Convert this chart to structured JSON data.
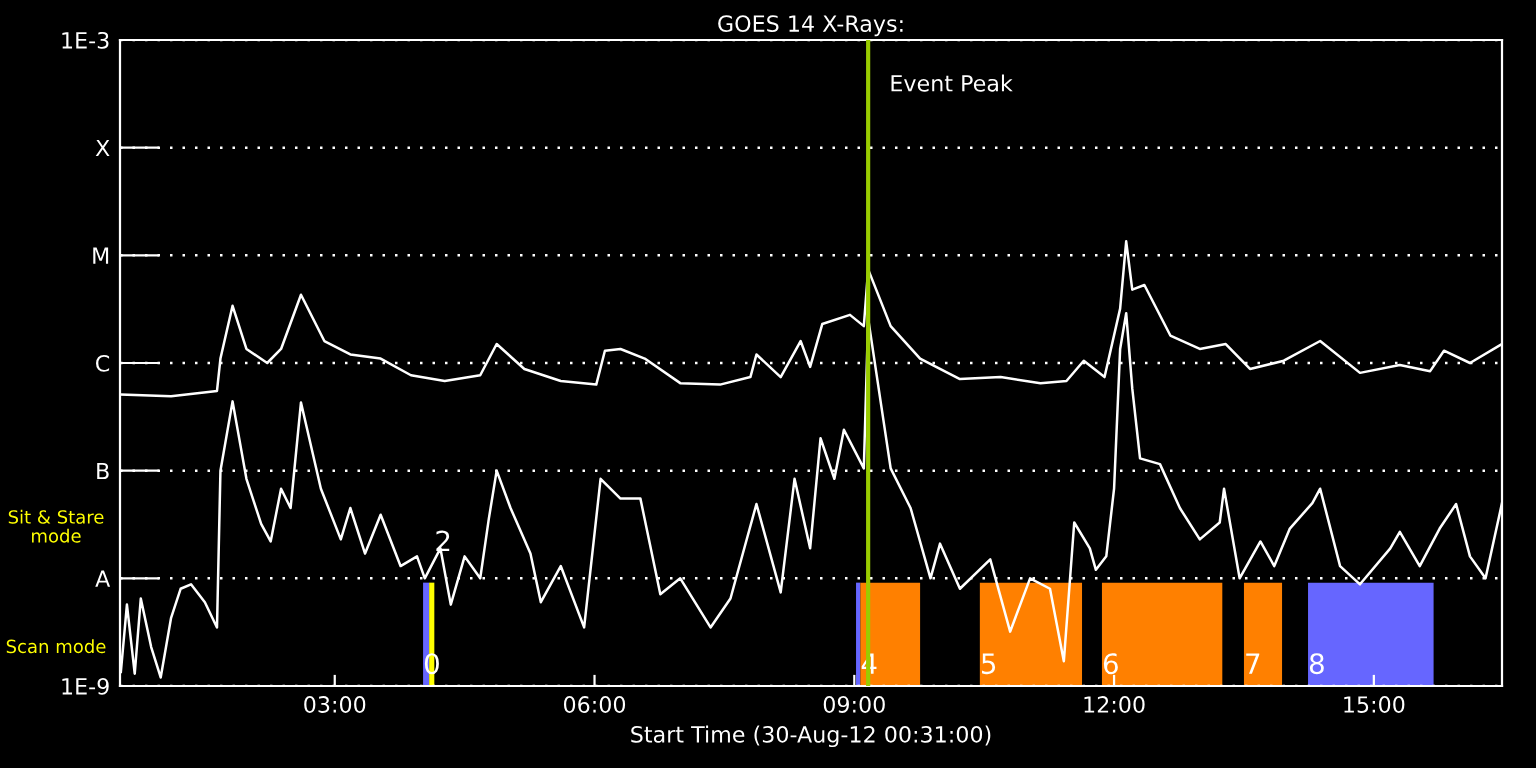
{
  "chart_data": {
    "type": "line",
    "title": "GOES 14 X-Rays:",
    "xlabel": "Start Time (30-Aug-12 00:31:00)",
    "log": "y",
    "grid": "y",
    "line_style": "solid",
    "marker": "none",
    "xlim": [
      0.52,
      16.48
    ],
    "ylim": [
      1e-09,
      0.001
    ],
    "xticks": [
      {
        "value": 3,
        "label": "03:00"
      },
      {
        "value": 6,
        "label": "06:00"
      },
      {
        "value": 9,
        "label": "09:00"
      },
      {
        "value": 12,
        "label": "12:00"
      },
      {
        "value": 15,
        "label": "15:00"
      }
    ],
    "yticks": [
      {
        "value": 1e-09,
        "label": "1E-9"
      },
      {
        "value": 1e-08,
        "label": "A"
      },
      {
        "value": 1e-07,
        "label": "B"
      },
      {
        "value": 1e-06,
        "label": "C"
      },
      {
        "value": 1e-05,
        "label": "M"
      },
      {
        "value": 0.0001,
        "label": "X"
      },
      {
        "value": 0.001,
        "label": "1E-3"
      }
    ],
    "series": [
      {
        "color": "#ffffff",
        "x": [
          0.53,
          1.11,
          1.64,
          1.68,
          1.82,
          1.98,
          2.22,
          2.38,
          2.61,
          2.88,
          3.18,
          3.53,
          3.88,
          4.27,
          4.68,
          4.87,
          5.19,
          5.61,
          6.02,
          6.12,
          6.3,
          6.58,
          6.99,
          7.45,
          7.8,
          7.87,
          8.15,
          8.38,
          8.49,
          8.63,
          8.95,
          9.11,
          9.16,
          9.42,
          9.76,
          10.22,
          10.69,
          11.15,
          11.45,
          11.65,
          11.89,
          12.07,
          12.14,
          12.21,
          12.35,
          12.65,
          12.99,
          13.29,
          13.57,
          13.96,
          14.38,
          14.84,
          15.3,
          15.65,
          15.81,
          16.11,
          16.48
        ],
        "values": [
          5.1e-07,
          4.9e-07,
          5.5e-07,
          1.1e-06,
          3.4e-06,
          1.35e-06,
          1e-06,
          1.35e-06,
          4.3e-06,
          1.6e-06,
          1.2e-06,
          1.1e-06,
          7.7e-07,
          6.8e-07,
          7.7e-07,
          1.5e-06,
          8.8e-07,
          6.8e-07,
          6.3e-07,
          1.3e-06,
          1.35e-06,
          1.1e-06,
          6.5e-07,
          6.3e-07,
          7.4e-07,
          1.2e-06,
          7.4e-07,
          1.6e-06,
          9.2e-07,
          2.3e-06,
          2.8e-06,
          2.2e-06,
          7.4e-06,
          2.2e-06,
          1.1e-06,
          7.1e-07,
          7.4e-07,
          6.5e-07,
          6.8e-07,
          1.05e-06,
          7.4e-07,
          3.2e-06,
          1.35e-05,
          4.8e-06,
          5.3e-06,
          1.8e-06,
          1.35e-06,
          1.5e-06,
          8.8e-07,
          1.05e-06,
          1.6e-06,
          8.1e-07,
          9.6e-07,
          8.4e-07,
          1.3e-06,
          1e-06,
          1.5e-06
        ]
      },
      {
        "color": "#ffffff",
        "x": [
          0.53,
          0.6,
          0.69,
          0.76,
          0.88,
          0.99,
          1.11,
          1.22,
          1.34,
          1.5,
          1.64,
          1.68,
          1.82,
          1.98,
          2.15,
          2.26,
          2.38,
          2.49,
          2.61,
          2.84,
          3.07,
          3.18,
          3.35,
          3.53,
          3.76,
          3.95,
          4.04,
          4.22,
          4.34,
          4.5,
          4.68,
          4.78,
          4.87,
          5.03,
          5.26,
          5.38,
          5.61,
          5.88,
          6.07,
          6.3,
          6.53,
          6.76,
          6.99,
          7.34,
          7.57,
          7.87,
          8.15,
          8.31,
          8.49,
          8.61,
          8.77,
          8.88,
          9.11,
          9.16,
          9.42,
          9.65,
          9.88,
          9.99,
          10.22,
          10.57,
          10.8,
          11.03,
          11.26,
          11.42,
          11.54,
          11.72,
          11.79,
          11.91,
          12.0,
          12.07,
          12.14,
          12.21,
          12.3,
          12.53,
          12.76,
          12.99,
          13.22,
          13.27,
          13.45,
          13.69,
          13.85,
          14.03,
          14.29,
          14.38,
          14.61,
          14.84,
          15.19,
          15.3,
          15.53,
          15.76,
          15.95,
          16.11,
          16.29,
          16.48
        ],
        "values": [
          1.35e-09,
          5.7e-09,
          1.3e-09,
          6.5e-09,
          2.3e-09,
          1.2e-09,
          4.3e-09,
          8e-09,
          8.8e-09,
          6e-09,
          3.5e-09,
          1e-07,
          4.4e-07,
          8.4e-08,
          3.2e-08,
          2.2e-08,
          6.8e-08,
          4.5e-08,
          4.3e-07,
          6.8e-08,
          2.3e-08,
          4.5e-08,
          1.7e-08,
          3.9e-08,
          1.3e-08,
          1.6e-08,
          1e-08,
          1.9e-08,
          5.7e-09,
          1.6e-08,
          1e-08,
          3.6e-08,
          1e-07,
          4.5e-08,
          1.7e-08,
          6e-09,
          1.3e-08,
          3.5e-09,
          8.4e-08,
          5.5e-08,
          5.5e-08,
          7.1e-09,
          1e-08,
          3.5e-09,
          6.5e-09,
          4.9e-08,
          7.4e-09,
          8.4e-08,
          1.9e-08,
          2e-07,
          8.4e-08,
          2.4e-07,
          1.05e-07,
          2.6e-06,
          1.05e-07,
          4.5e-08,
          1e-08,
          2.1e-08,
          8e-09,
          1.5e-08,
          3.2e-09,
          1e-08,
          8e-09,
          1.7e-09,
          3.3e-08,
          1.9e-08,
          1.2e-08,
          1.6e-08,
          6.8e-08,
          1.35e-06,
          2.9e-06,
          5.8e-07,
          1.3e-07,
          1.15e-07,
          4.5e-08,
          2.3e-08,
          3.3e-08,
          6.8e-08,
          1e-08,
          2.2e-08,
          1.3e-08,
          2.9e-08,
          5e-08,
          6.8e-08,
          1.3e-08,
          8.8e-09,
          1.9e-08,
          2.7e-08,
          1.3e-08,
          2.9e-08,
          4.9e-08,
          1.6e-08,
          1e-08,
          5e-08
        ]
      }
    ],
    "ref_lines": [
      {
        "axis": "x",
        "value": 9.16,
        "label": "Event Peak",
        "color": "#99cc00"
      }
    ],
    "bands": [
      {
        "axis": "x",
        "from": 4.02,
        "to": 4.09,
        "label": "0",
        "color": "#6666ff"
      },
      {
        "axis": "x",
        "from": 4.09,
        "to": 4.15,
        "label": "2",
        "color": "#ffff00"
      },
      {
        "axis": "x",
        "from": 9.02,
        "to": 9.07,
        "color": "#6666ff"
      },
      {
        "axis": "x",
        "from": 9.07,
        "to": 9.76,
        "label": "4",
        "color": "#ff8000"
      },
      {
        "axis": "x",
        "from": 10.45,
        "to": 11.63,
        "label": "5",
        "color": "#ff8000"
      },
      {
        "axis": "x",
        "from": 11.86,
        "to": 13.25,
        "label": "6",
        "color": "#ff8000"
      },
      {
        "axis": "x",
        "from": 13.5,
        "to": 13.94,
        "label": "7",
        "color": "#ff8000"
      },
      {
        "axis": "x",
        "from": 14.24,
        "to": 15.69,
        "label": "8",
        "color": "#6666ff"
      }
    ],
    "annotations": [
      "Sit & Stare\nmode",
      "Scan mode"
    ]
  }
}
